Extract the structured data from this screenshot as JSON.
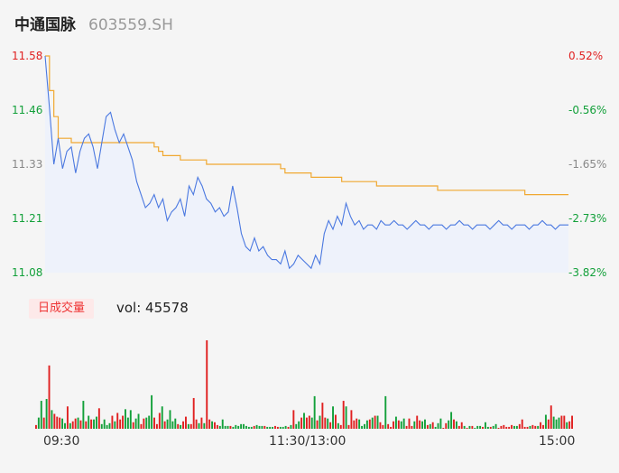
{
  "header": {
    "name": "中通国脉",
    "code": "603559.SH"
  },
  "volume": {
    "tag": "日成交量",
    "label_prefix": "vol: ",
    "value": "45578"
  },
  "time_labels": [
    "09:30",
    "11:30/13:00",
    "15:00"
  ],
  "colors": {
    "up": "#e02020",
    "down": "#13a03a",
    "neutral": "#888888",
    "price_line": "#4a78e0",
    "avg_line": "#f0a830",
    "area_fill": "#eef2fb"
  },
  "chart_data": [
    {
      "type": "line",
      "title": "",
      "prev_close": 11.52,
      "ylim": [
        11.08,
        11.58
      ],
      "y_ticks_left": [
        "11.58",
        "11.46",
        "11.33",
        "11.21",
        "11.08"
      ],
      "y_ticks_right": [
        "0.52%",
        "-0.56%",
        "-1.65%",
        "-2.73%",
        "-3.82%"
      ],
      "x_ticks": [
        "09:30",
        "11:30/13:00",
        "15:00"
      ],
      "series": [
        {
          "key": "price",
          "x": [
            0,
            2,
            4,
            6,
            8,
            10,
            12,
            14,
            16,
            18,
            20,
            22,
            24,
            26,
            28,
            30,
            32,
            34,
            36,
            38,
            40,
            42,
            44,
            46,
            48,
            50,
            52,
            54,
            56,
            58,
            60,
            62,
            64,
            66,
            68,
            70,
            72,
            74,
            76,
            78,
            80,
            82,
            84,
            86,
            88,
            90,
            92,
            94,
            96,
            98,
            100,
            102,
            104,
            106,
            108,
            110,
            112,
            114,
            116,
            118,
            120,
            122,
            124,
            126,
            128,
            130,
            132,
            134,
            136,
            138,
            140,
            142,
            144,
            146,
            148,
            150,
            152,
            154,
            156,
            158,
            160,
            162,
            164,
            166,
            168,
            170,
            172,
            174,
            176,
            178,
            180,
            182,
            184,
            186,
            188,
            190,
            192,
            194,
            196,
            198,
            200,
            202,
            204,
            206,
            208,
            210,
            212,
            214,
            216,
            218,
            220,
            222,
            224,
            226,
            228,
            230,
            232,
            234,
            236,
            238,
            240
          ],
          "values": [
            11.58,
            11.46,
            11.33,
            11.39,
            11.32,
            11.36,
            11.37,
            11.31,
            11.36,
            11.39,
            11.4,
            11.37,
            11.32,
            11.38,
            11.44,
            11.45,
            11.41,
            11.38,
            11.4,
            11.37,
            11.34,
            11.29,
            11.26,
            11.23,
            11.24,
            11.26,
            11.23,
            11.25,
            11.2,
            11.22,
            11.23,
            11.25,
            11.21,
            11.28,
            11.26,
            11.3,
            11.28,
            11.25,
            11.24,
            11.22,
            11.23,
            11.21,
            11.22,
            11.28,
            11.23,
            11.17,
            11.14,
            11.13,
            11.16,
            11.13,
            11.14,
            11.12,
            11.11,
            11.11,
            11.1,
            11.13,
            11.09,
            11.1,
            11.12,
            11.11,
            11.1,
            11.09,
            11.12,
            11.1,
            11.17,
            11.2,
            11.18,
            11.21,
            11.19,
            11.24,
            11.21,
            11.19,
            11.2,
            11.18,
            11.19,
            11.19,
            11.18,
            11.2,
            11.19,
            11.19,
            11.2,
            11.19,
            11.19,
            11.18,
            11.19,
            11.2,
            11.19,
            11.19,
            11.18,
            11.19,
            11.19,
            11.19,
            11.18,
            11.19,
            11.19,
            11.2,
            11.19,
            11.19,
            11.18,
            11.19,
            11.19,
            11.19,
            11.18,
            11.19,
            11.2,
            11.19,
            11.19,
            11.18,
            11.19,
            11.19,
            11.19,
            11.18,
            11.19,
            11.19,
            11.2,
            11.19,
            11.19,
            11.18,
            11.19,
            11.19,
            11.19
          ]
        },
        {
          "key": "average",
          "x": [
            0,
            2,
            4,
            6,
            8,
            10,
            12,
            14,
            16,
            18,
            20,
            22,
            24,
            26,
            28,
            30,
            32,
            34,
            36,
            38,
            40,
            42,
            44,
            46,
            48,
            50,
            52,
            54,
            56,
            58,
            60,
            62,
            64,
            66,
            68,
            70,
            72,
            74,
            76,
            78,
            80,
            82,
            84,
            86,
            88,
            90,
            92,
            94,
            96,
            98,
            100,
            102,
            104,
            106,
            108,
            110,
            112,
            114,
            116,
            118,
            120,
            122,
            124,
            126,
            128,
            130,
            132,
            134,
            136,
            138,
            140,
            142,
            144,
            146,
            148,
            150,
            152,
            154,
            156,
            158,
            160,
            162,
            164,
            166,
            168,
            170,
            172,
            174,
            176,
            178,
            180,
            182,
            184,
            186,
            188,
            190,
            192,
            194,
            196,
            198,
            200,
            202,
            204,
            206,
            208,
            210,
            212,
            214,
            216,
            218,
            220,
            222,
            224,
            226,
            228,
            230,
            232,
            234,
            236,
            238,
            240
          ],
          "values": [
            11.58,
            11.5,
            11.44,
            11.39,
            11.39,
            11.39,
            11.38,
            11.38,
            11.38,
            11.38,
            11.38,
            11.38,
            11.38,
            11.38,
            11.38,
            11.38,
            11.38,
            11.38,
            11.38,
            11.38,
            11.38,
            11.38,
            11.38,
            11.38,
            11.38,
            11.37,
            11.36,
            11.35,
            11.35,
            11.35,
            11.35,
            11.34,
            11.34,
            11.34,
            11.34,
            11.34,
            11.34,
            11.33,
            11.33,
            11.33,
            11.33,
            11.33,
            11.33,
            11.33,
            11.33,
            11.33,
            11.33,
            11.33,
            11.33,
            11.33,
            11.33,
            11.33,
            11.33,
            11.33,
            11.32,
            11.31,
            11.31,
            11.31,
            11.31,
            11.31,
            11.31,
            11.3,
            11.3,
            11.3,
            11.3,
            11.3,
            11.3,
            11.3,
            11.29,
            11.29,
            11.29,
            11.29,
            11.29,
            11.29,
            11.29,
            11.29,
            11.28,
            11.28,
            11.28,
            11.28,
            11.28,
            11.28,
            11.28,
            11.28,
            11.28,
            11.28,
            11.28,
            11.28,
            11.28,
            11.28,
            11.27,
            11.27,
            11.27,
            11.27,
            11.27,
            11.27,
            11.27,
            11.27,
            11.27,
            11.27,
            11.27,
            11.27,
            11.27,
            11.27,
            11.27,
            11.27,
            11.27,
            11.27,
            11.27,
            11.27,
            11.26,
            11.26,
            11.26,
            11.26,
            11.26,
            11.26,
            11.26,
            11.26,
            11.26,
            11.26,
            11.26
          ]
        }
      ]
    },
    {
      "type": "bar",
      "title": "",
      "ylim": [
        0,
        95
      ],
      "values": [
        4,
        12,
        30,
        12,
        32,
        68,
        20,
        16,
        13,
        12,
        11,
        6,
        24,
        6,
        8,
        11,
        12,
        9,
        30,
        8,
        14,
        10,
        10,
        13,
        22,
        5,
        10,
        4,
        6,
        14,
        8,
        17,
        10,
        14,
        21,
        12,
        20,
        7,
        11,
        16,
        5,
        11,
        12,
        14,
        36,
        12,
        5,
        17,
        24,
        8,
        10,
        20,
        8,
        11,
        5,
        4,
        8,
        13,
        5,
        5,
        33,
        10,
        6,
        12,
        6,
        95,
        10,
        8,
        7,
        4,
        3,
        10,
        3,
        3,
        3,
        2,
        4,
        3,
        5,
        5,
        3,
        2,
        2,
        3,
        4,
        3,
        3,
        3,
        2,
        2,
        2,
        3,
        2,
        2,
        2,
        3,
        2,
        4,
        20,
        5,
        8,
        12,
        17,
        12,
        14,
        12,
        35,
        9,
        14,
        28,
        12,
        11,
        7,
        24,
        15,
        6,
        4,
        30,
        24,
        4,
        20,
        9,
        11,
        10,
        3,
        5,
        9,
        10,
        12,
        14,
        14,
        7,
        4,
        35,
        5,
        2,
        8,
        13,
        9,
        8,
        11,
        3,
        11,
        3,
        8,
        14,
        9,
        8,
        10,
        4,
        5,
        7,
        2,
        6,
        11,
        1,
        6,
        9,
        18,
        10,
        8,
        3,
        7,
        3,
        1,
        3,
        3,
        1,
        3,
        3,
        2,
        7,
        2,
        2,
        3,
        5,
        1,
        3,
        4,
        2,
        2,
        4,
        3,
        3,
        5,
        10,
        2,
        2,
        3,
        4,
        3,
        3,
        7,
        4,
        15,
        10,
        25,
        13,
        10,
        12,
        14,
        14,
        7,
        8,
        14
      ],
      "colors": [
        "u",
        "d",
        "d",
        "u",
        "d",
        "u",
        "d",
        "u",
        "u",
        "u",
        "d",
        "d",
        "u",
        "d",
        "u",
        "u",
        "d",
        "u",
        "d",
        "u",
        "d",
        "u",
        "d",
        "d",
        "u",
        "d",
        "d",
        "d",
        "d",
        "u",
        "d",
        "u",
        "u",
        "u",
        "d",
        "d",
        "d",
        "u",
        "d",
        "d",
        "u",
        "u",
        "d",
        "d",
        "d",
        "u",
        "u",
        "u",
        "d",
        "u",
        "d",
        "d",
        "d",
        "d",
        "u",
        "d",
        "u",
        "u",
        "d",
        "u",
        "u",
        "u",
        "d",
        "u",
        "d",
        "u",
        "u",
        "d",
        "u",
        "u",
        "d",
        "d",
        "d",
        "d",
        "u",
        "d",
        "d",
        "d",
        "d",
        "d",
        "d",
        "d",
        "d",
        "u",
        "d",
        "d",
        "d",
        "u",
        "d",
        "d",
        "d",
        "u",
        "u",
        "d",
        "d",
        "d",
        "u",
        "d",
        "u",
        "d",
        "d",
        "u",
        "d",
        "u",
        "u",
        "d",
        "d",
        "u",
        "d",
        "u",
        "u",
        "d",
        "u",
        "d",
        "u",
        "d",
        "u",
        "u",
        "d",
        "u",
        "u",
        "u",
        "u",
        "d",
        "d",
        "d",
        "d",
        "u",
        "d",
        "u",
        "d",
        "u",
        "u",
        "d",
        "u",
        "u",
        "u",
        "d",
        "u",
        "d",
        "d",
        "u",
        "u",
        "u",
        "d",
        "u",
        "u",
        "d",
        "d",
        "u",
        "d",
        "u",
        "d",
        "d",
        "d",
        "u",
        "u",
        "d",
        "d",
        "u",
        "d",
        "u",
        "u",
        "d",
        "u",
        "d",
        "u",
        "d",
        "d",
        "d",
        "u",
        "d",
        "d",
        "u",
        "d",
        "d",
        "u",
        "u",
        "u",
        "u",
        "u",
        "u",
        "d",
        "d",
        "u",
        "u",
        "u",
        "u",
        "d",
        "u",
        "u",
        "d",
        "u",
        "u",
        "d",
        "u",
        "u",
        "d",
        "d",
        "d",
        "u",
        "u",
        "d",
        "u",
        "u",
        "d",
        "d"
      ]
    }
  ]
}
